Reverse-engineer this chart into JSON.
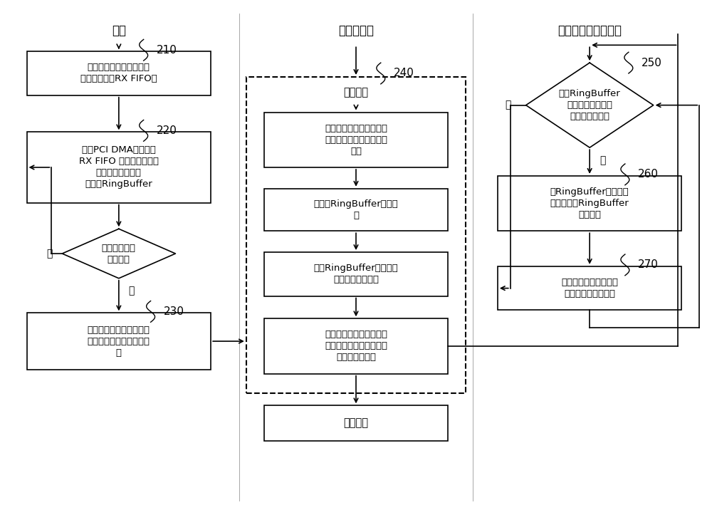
{
  "background_color": "#ffffff",
  "col1_header": "网卡",
  "col2_header": "内核态驱动",
  "col3_header": "用户态数据分析装置",
  "box210_text": "捕获数据包，并将数据包\n保存至网卡的RX FIFO中",
  "box210_label": "210",
  "box220_text": "通过PCI DMA控制器将\nRX FIFO 中的数据包传输\n至内核态驱动中的\n预配置RingBuffer",
  "box220_label": "220",
  "diamond_text": "判断是否达到\n中断条件",
  "diamond_no": "否",
  "diamond_yes": "是",
  "box230_text": "基于预设中断触发策略，\n向内核态驱动发送中断请\n求",
  "box230_label": "230",
  "box240_label": "240",
  "box240_group_title": "中断响应",
  "box241_text": "根据中断请求，停止接收\n所述网卡发送的新的中断\n请求",
  "box242_text": "并更新RingBuffer的描述\n符",
  "box243_text": "更新RingBuffer包含的子\n缓存区对应的状态",
  "box244_text": "恢复接收所述网卡发送的\n新的中断请求，并执行所\n述中断响应操作",
  "box_return_text": "中断返回",
  "box250_text": "根据RingBuffer\n的当前描述符，判\n断是否有数据包",
  "box250_label": "250",
  "box250_no": "否",
  "box250_yes": "是",
  "box260_text": "从RingBuffer中提取数\n据包，更新RingBuffer\n的描述符",
  "box260_label": "260",
  "box270_text": "按预设睡眠时长睡眠，\n在预设睡眠时长之后",
  "box270_label": "270",
  "font_size_header": 12,
  "font_size_label": 11,
  "font_size_box": 9.5,
  "font_size_no_yes": 10
}
